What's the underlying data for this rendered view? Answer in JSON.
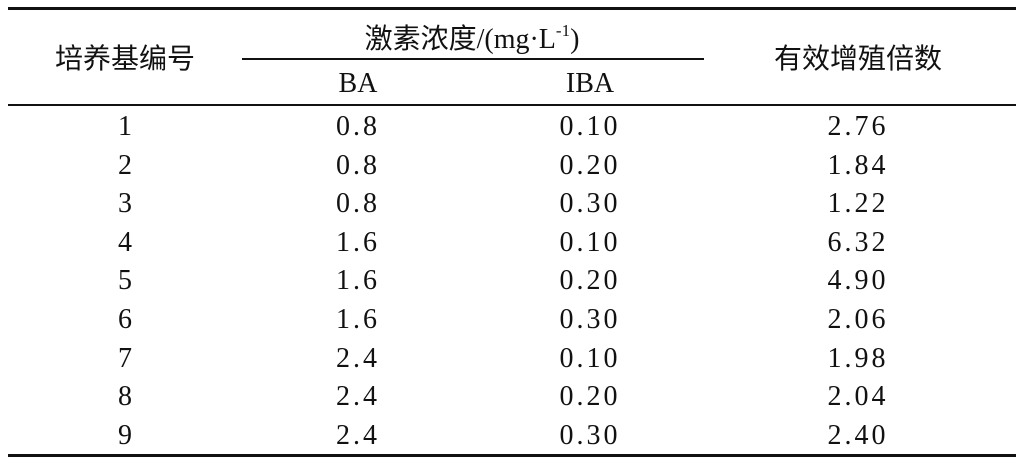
{
  "table": {
    "header": {
      "medium_no": "培养基编号",
      "hormone": {
        "prefix": "激素浓度/(mg·L",
        "superscript": "-1",
        "suffix": ")"
      },
      "ba": "BA",
      "iba": "IBA",
      "multiplication": "有效增殖倍数"
    },
    "rows": [
      [
        "1",
        "0.8",
        "0.10",
        "2.76"
      ],
      [
        "2",
        "0.8",
        "0.20",
        "1.84"
      ],
      [
        "3",
        "0.8",
        "0.30",
        "1.22"
      ],
      [
        "4",
        "1.6",
        "0.10",
        "6.32"
      ],
      [
        "5",
        "1.6",
        "0.20",
        "4.90"
      ],
      [
        "6",
        "1.6",
        "0.30",
        "2.06"
      ],
      [
        "7",
        "2.4",
        "0.10",
        "1.98"
      ],
      [
        "8",
        "2.4",
        "0.20",
        "2.04"
      ],
      [
        "9",
        "2.4",
        "0.30",
        "2.40"
      ]
    ]
  }
}
